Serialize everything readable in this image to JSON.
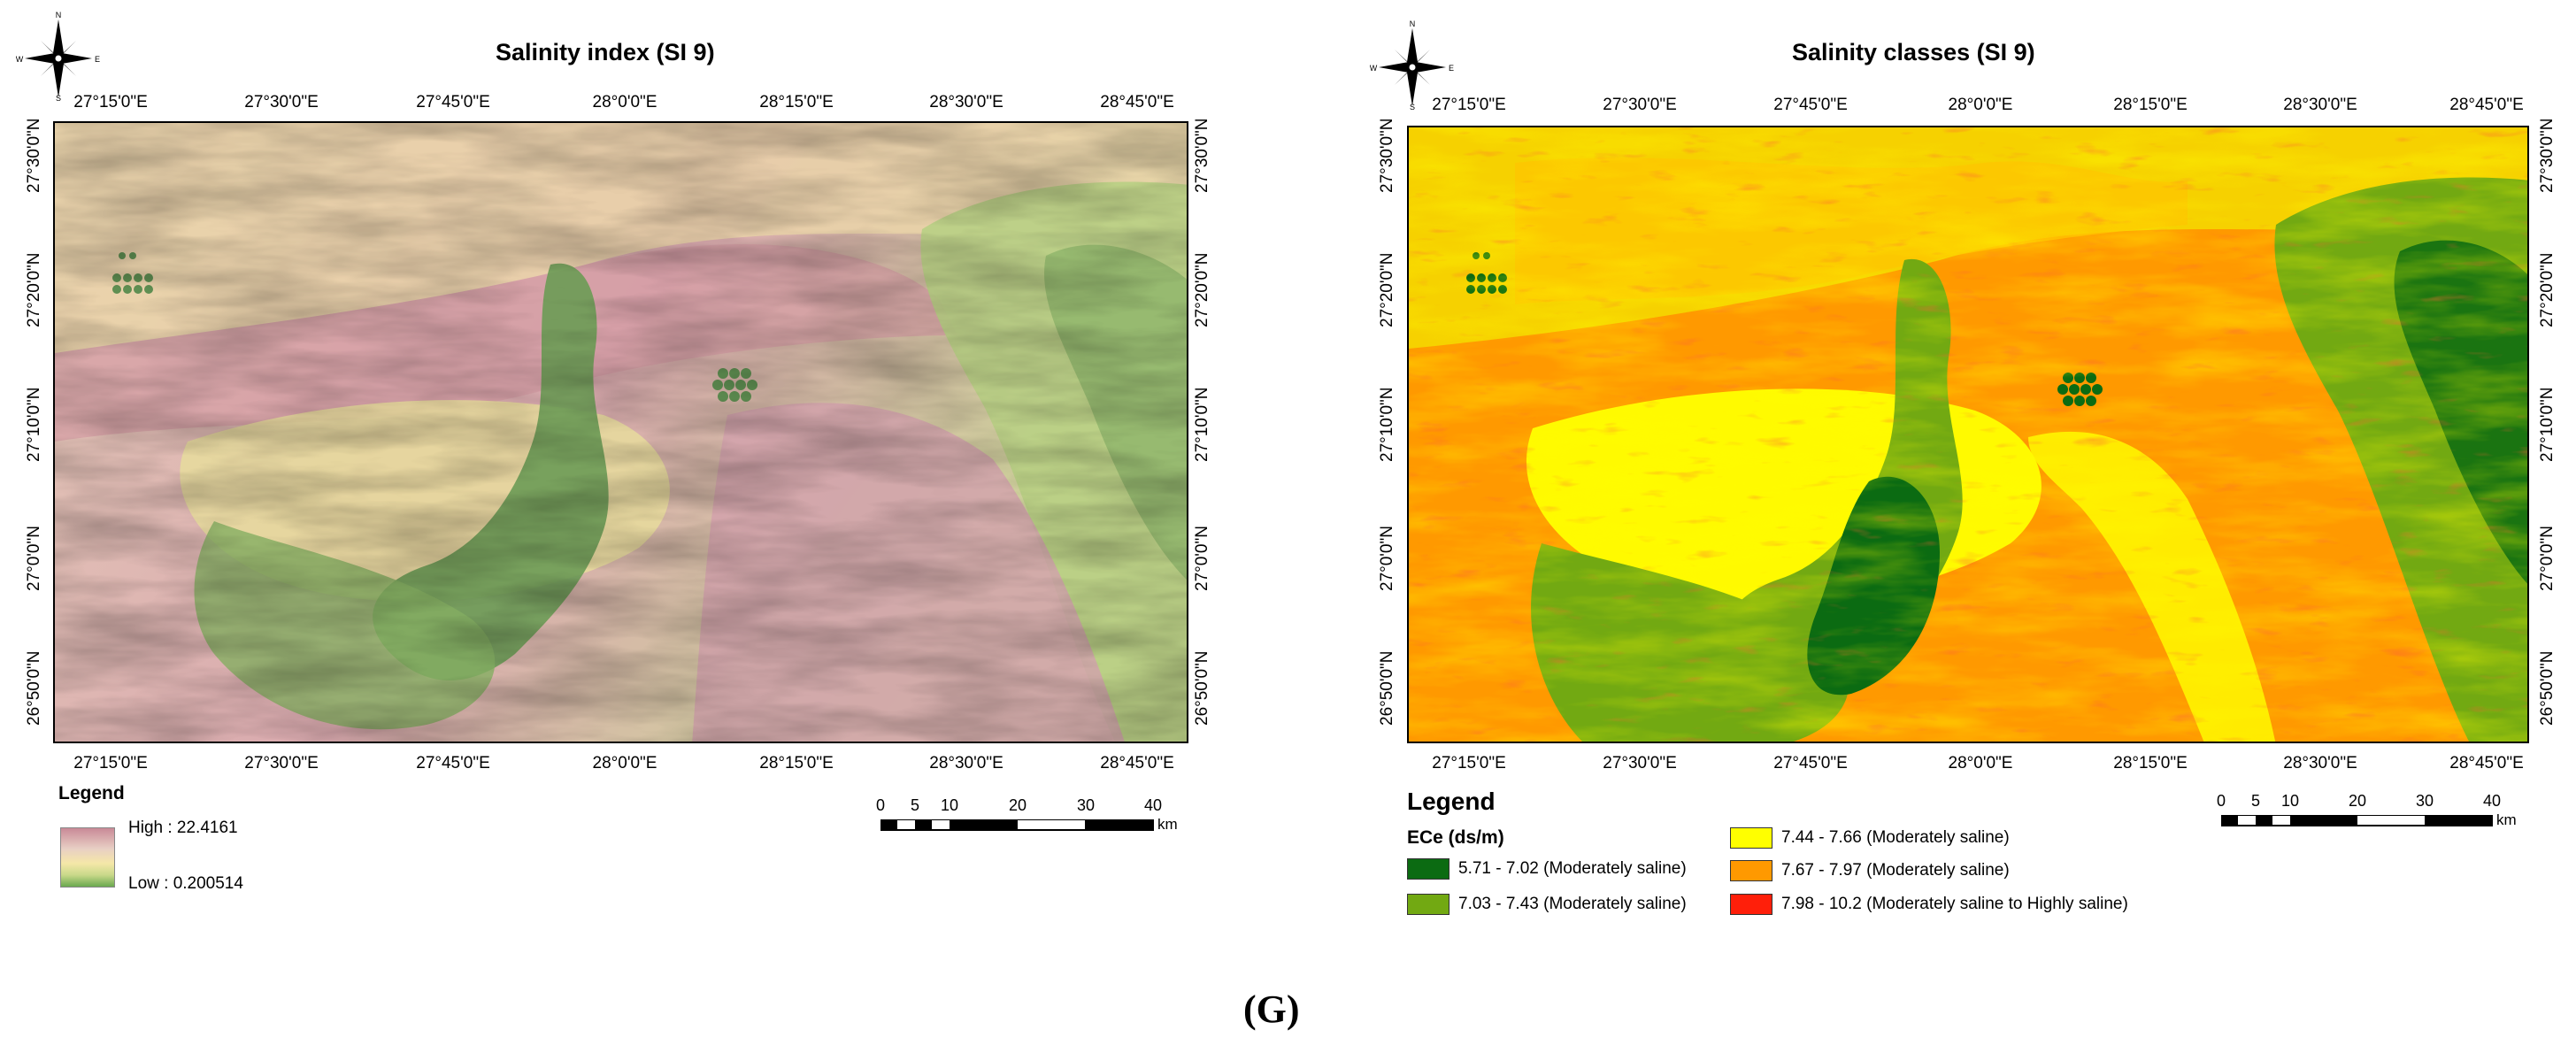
{
  "left_map": {
    "title": "Salinity index (SI 9)",
    "top_ticks": [
      "27°15'0\"E",
      "27°30'0\"E",
      "27°45'0\"E",
      "28°0'0\"E",
      "28°15'0\"E",
      "28°30'0\"E",
      "28°45'0\"E"
    ],
    "bottom_ticks": [
      "27°15'0\"E",
      "27°30'0\"E",
      "27°45'0\"E",
      "28°0'0\"E",
      "28°15'0\"E",
      "28°30'0\"E",
      "28°45'0\"E"
    ],
    "lat_ticks": [
      "27°30'0\"N",
      "27°20'0\"N",
      "27°10'0\"N",
      "27°0'0\"N",
      "26°50'0\"N"
    ],
    "legend": {
      "title": "Legend",
      "high": "High : 22.4161",
      "low": "Low : 0.200514",
      "ramp_colors": [
        "#c98a97",
        "#e8cfc4",
        "#f5e7a8",
        "#c9d98a",
        "#6aa84f"
      ]
    },
    "scale": {
      "numbers": [
        "0",
        "5",
        "10",
        "20",
        "30",
        "40"
      ],
      "unit": "km"
    }
  },
  "right_map": {
    "title": "Salinity classes (SI 9)",
    "top_ticks": [
      "27°15'0\"E",
      "27°30'0\"E",
      "27°45'0\"E",
      "28°0'0\"E",
      "28°15'0\"E",
      "28°30'0\"E",
      "28°45'0\"E"
    ],
    "bottom_ticks": [
      "27°15'0\"E",
      "27°30'0\"E",
      "27°45'0\"E",
      "28°0'0\"E",
      "28°15'0\"E",
      "28°30'0\"E",
      "28°45'0\"E"
    ],
    "lat_ticks": [
      "27°30'0\"N",
      "27°20'0\"N",
      "27°10'0\"N",
      "27°0'0\"N",
      "26°50'0\"N"
    ],
    "legend": {
      "title": "Legend",
      "subtitle": "ECe (ds/m)",
      "classes": [
        {
          "label": "5.71 - 7.02 (Moderately saline)",
          "color": "#0b6b12"
        },
        {
          "label": "7.03 - 7.43 (Moderately saline)",
          "color": "#72a912"
        },
        {
          "label": "7.44 - 7.66 (Moderately saline)",
          "color": "#ffff00"
        },
        {
          "label": "7.67 - 7.97 (Moderately saline)",
          "color": "#ff9900"
        },
        {
          "label": "7.98 - 10.2 (Moderately saline to Highly saline)",
          "color": "#ff1f0a"
        }
      ]
    },
    "scale": {
      "numbers": [
        "0",
        "5",
        "10",
        "20",
        "30",
        "40"
      ],
      "unit": "km"
    }
  },
  "caption": "(G)"
}
